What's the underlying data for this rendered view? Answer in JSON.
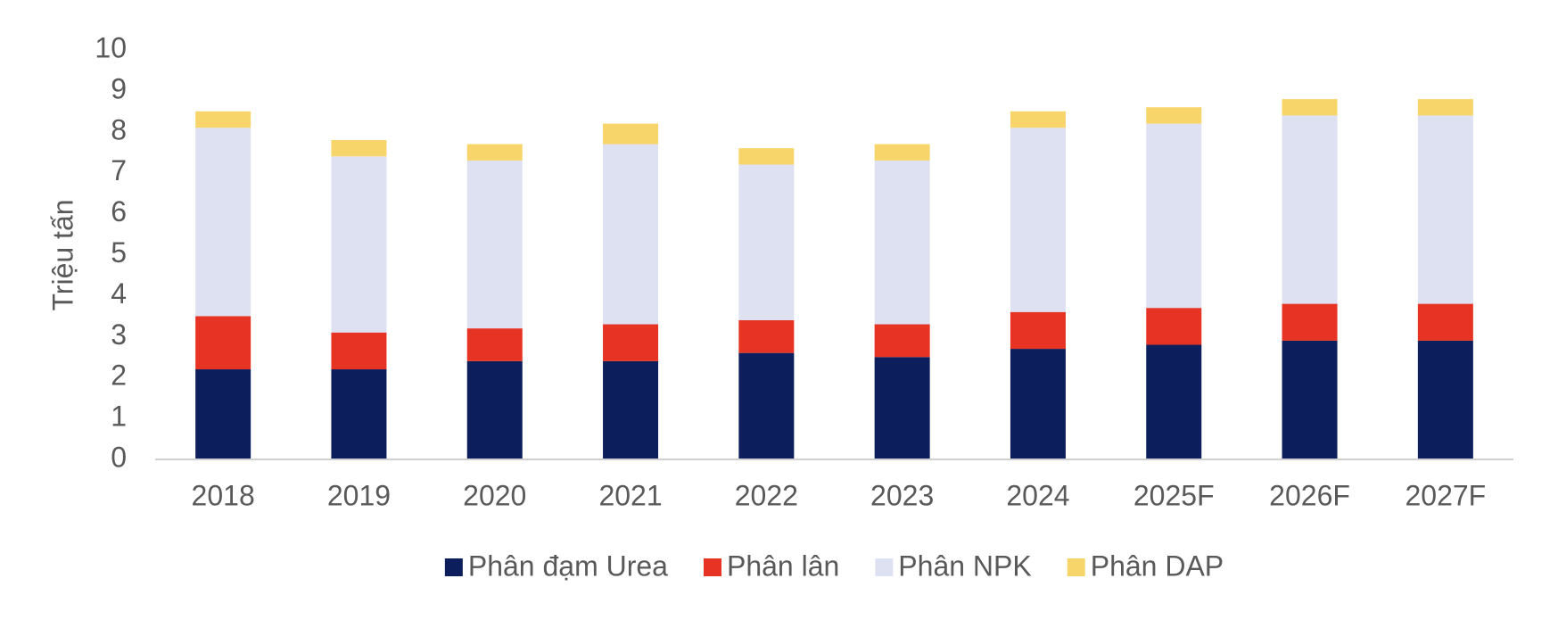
{
  "chart_data": {
    "type": "stacked-bar",
    "y_label": "Triệu tấn",
    "categories": [
      "2018",
      "2019",
      "2020",
      "2021",
      "2022",
      "2023",
      "2024",
      "2025F",
      "2026F",
      "2027F"
    ],
    "series": [
      {
        "name": "Phân đạm Urea",
        "color": "#0c1f5c",
        "values": [
          2.2,
          2.2,
          2.4,
          2.4,
          2.6,
          2.5,
          2.7,
          2.8,
          2.9,
          2.9
        ]
      },
      {
        "name": "Phân lân",
        "color": "#e63323",
        "values": [
          1.3,
          0.9,
          0.8,
          0.9,
          0.8,
          0.8,
          0.9,
          0.9,
          0.9,
          0.9
        ]
      },
      {
        "name": "Phân NPK",
        "color": "#dde1f2",
        "values": [
          4.6,
          4.3,
          4.1,
          4.4,
          3.8,
          4.0,
          4.5,
          4.5,
          4.6,
          4.6
        ]
      },
      {
        "name": "Phân DAP",
        "color": "#f8d56a",
        "values": [
          0.4,
          0.4,
          0.4,
          0.5,
          0.4,
          0.4,
          0.4,
          0.4,
          0.4,
          0.4
        ]
      }
    ],
    "ylim": [
      0,
      10
    ],
    "yticks": [
      0,
      1,
      2,
      3,
      4,
      5,
      6,
      7,
      8,
      9,
      10
    ],
    "grid": false,
    "legend": "bottom"
  }
}
